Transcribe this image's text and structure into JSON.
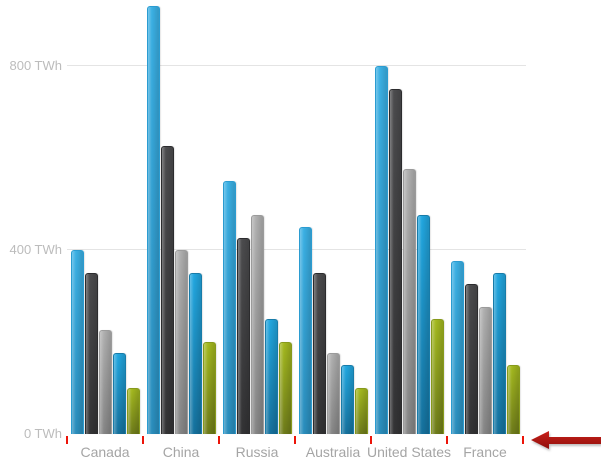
{
  "chart_data": {
    "type": "bar",
    "title": "",
    "unit": "TWh",
    "categories": [
      "Canada",
      "China",
      "Russia",
      "Australia",
      "United States",
      "France"
    ],
    "series": [
      {
        "name": "series-1-light-blue",
        "color_top": "#3bb0e4",
        "color_bottom": "#2a8dbc",
        "border_color": "#2b9cd1",
        "values": [
          400,
          930,
          550,
          450,
          800,
          375
        ]
      },
      {
        "name": "series-2-dark-gray",
        "color_top": "#4c4c4e",
        "color_bottom": "#333335",
        "border_color": "#2c2c2e",
        "values": [
          350,
          625,
          425,
          350,
          750,
          325
        ]
      },
      {
        "name": "series-3-silver",
        "color_top": "#b0b0b0",
        "color_bottom": "#858585",
        "border_color": "#9b9b9b",
        "values": [
          225,
          400,
          475,
          175,
          575,
          275
        ]
      },
      {
        "name": "series-4-blue",
        "color_top": "#22a7e0",
        "color_bottom": "#15719d",
        "border_color": "#187ca9",
        "values": [
          175,
          350,
          250,
          150,
          475,
          350
        ]
      },
      {
        "name": "series-5-olive",
        "color_top": "#a4b91f",
        "color_bottom": "#6e7b1a",
        "border_color": "#879a1c",
        "values": [
          100,
          200,
          200,
          100,
          250,
          150
        ]
      }
    ],
    "y_axis": {
      "ticks": [
        {
          "label": "0 TWh",
          "value": 0,
          "gridline": false
        },
        {
          "label": "400 TWh",
          "value": 400,
          "gridline": true
        },
        {
          "label": "800 TWh",
          "value": 800,
          "gridline": true
        }
      ],
      "ylim": [
        0,
        950
      ]
    },
    "legend": "none",
    "grid": "horizontal"
  },
  "annotations": {
    "category_tick_color": "#ec1409",
    "arrow": {
      "shape": "left-arrow",
      "color_top": "#c9201a",
      "color_bottom": "#8f0e0b"
    }
  }
}
